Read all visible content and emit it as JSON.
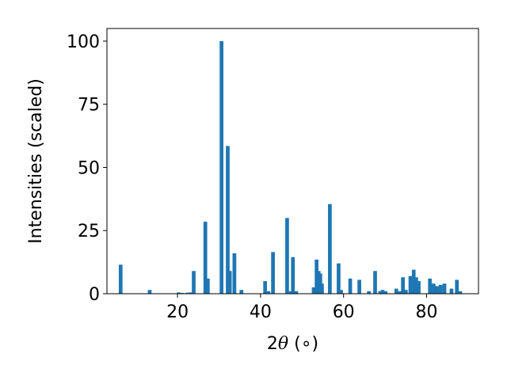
{
  "chart_data": {
    "type": "bar",
    "title": "",
    "xlabel": {
      "prefix": "2",
      "symbol": "θ",
      "suffix": " (∘)"
    },
    "ylabel": "Intensities (scaled)",
    "xlim": [
      3.0,
      92.5
    ],
    "ylim": [
      0,
      105
    ],
    "xticks": [
      20,
      40,
      60,
      80
    ],
    "yticks": [
      0,
      25,
      50,
      75,
      100
    ],
    "bar_width": 0.9,
    "grid": false,
    "bar_color": "#1f77b4",
    "x": [
      6.3,
      13.3,
      20.3,
      21.1,
      22.4,
      23.2,
      23.9,
      26.7,
      27.3,
      30.6,
      32.1,
      32.6,
      33.7,
      35.4,
      41.1,
      41.9,
      43.0,
      46.4,
      47.3,
      47.8,
      48.6,
      52.8,
      53.5,
      54.0,
      54.4,
      54.8,
      56.7,
      58.8,
      59.4,
      61.6,
      63.8,
      66.1,
      67.6,
      68.8,
      69.4,
      70.1,
      72.7,
      73.5,
      74.3,
      75.0,
      76.1,
      76.9,
      77.5,
      78.1,
      80.8,
      81.7,
      82.5,
      83.4,
      84.3,
      86.0,
      87.3,
      88.1
    ],
    "values": [
      11.5,
      1.5,
      0.5,
      0.3,
      0.4,
      0.5,
      9.0,
      28.5,
      6.0,
      100,
      58.5,
      9.0,
      16.0,
      1.5,
      5.0,
      1.0,
      16.5,
      30.0,
      1.0,
      14.5,
      1.0,
      2.5,
      13.5,
      9.0,
      8.0,
      4.0,
      35.5,
      12.0,
      1.5,
      6.0,
      5.5,
      1.0,
      9.0,
      1.0,
      1.5,
      1.0,
      2.0,
      1.0,
      6.5,
      1.5,
      7.0,
      9.5,
      6.5,
      5.0,
      6.0,
      4.0,
      3.0,
      3.5,
      4.0,
      2.0,
      5.5,
      1.0
    ]
  }
}
